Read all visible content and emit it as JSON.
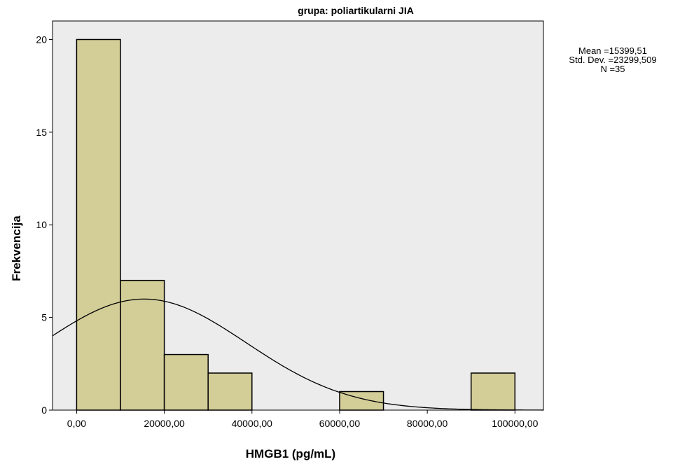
{
  "chart_data": {
    "type": "bar",
    "title": "grupa: poliartikularni JIA",
    "xlabel": "HMGB1 (pg/mL)",
    "ylabel": "Frekvencija",
    "bins": [
      {
        "start": 0,
        "end": 10000,
        "count": 20
      },
      {
        "start": 10000,
        "end": 20000,
        "count": 7
      },
      {
        "start": 20000,
        "end": 30000,
        "count": 3
      },
      {
        "start": 30000,
        "end": 40000,
        "count": 2
      },
      {
        "start": 60000,
        "end": 70000,
        "count": 1
      },
      {
        "start": 90000,
        "end": 100000,
        "count": 2
      }
    ],
    "xlim": [
      -5500,
      106500
    ],
    "ylim": [
      0,
      21
    ],
    "x_ticks": [
      {
        "value": 0,
        "label": "0,00"
      },
      {
        "value": 20000,
        "label": "20000,00"
      },
      {
        "value": 40000,
        "label": "40000,00"
      },
      {
        "value": 60000,
        "label": "60000,00"
      },
      {
        "value": 80000,
        "label": "80000,00"
      },
      {
        "value": 100000,
        "label": "100000,00"
      }
    ],
    "y_ticks": [
      {
        "value": 0,
        "label": "0"
      },
      {
        "value": 5,
        "label": "5"
      },
      {
        "value": 10,
        "label": "10"
      },
      {
        "value": 15,
        "label": "15"
      },
      {
        "value": 20,
        "label": "20"
      }
    ],
    "normal_curve": {
      "mean": 15399.51,
      "std": 23299.509,
      "n": 35,
      "bin_width": 10000
    },
    "stats_text": [
      "Mean =15399,51",
      "Std. Dev. =23299,509",
      "N =35"
    ],
    "colors": {
      "bar_fill": "#d3cd98",
      "bar_stroke": "#000000",
      "plot_bg": "#ececec",
      "curve": "#000000"
    },
    "grid": false
  }
}
